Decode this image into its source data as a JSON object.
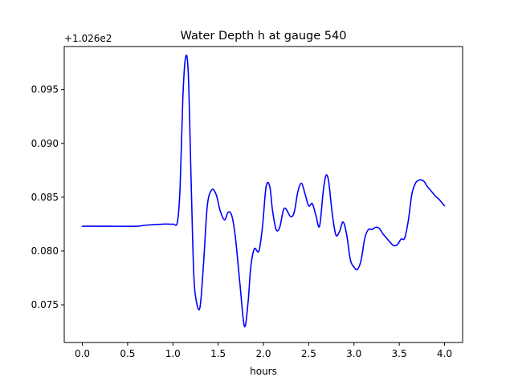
{
  "chart_data": {
    "type": "line",
    "title": "Water Depth h at gauge 540",
    "xlabel": "hours",
    "ylabel": "",
    "y_offset_label": "+1.026e2",
    "y_offset": 102.6,
    "xlim": [
      -0.2,
      4.2
    ],
    "ylim": [
      0.0715,
      0.099
    ],
    "x_ticks": [
      0.0,
      0.5,
      1.0,
      1.5,
      2.0,
      2.5,
      3.0,
      3.5,
      4.0
    ],
    "x_tick_labels": [
      "0.0",
      "0.5",
      "1.0",
      "1.5",
      "2.0",
      "2.5",
      "3.0",
      "3.5",
      "4.0"
    ],
    "y_ticks": [
      0.075,
      0.08,
      0.085,
      0.09,
      0.095
    ],
    "y_tick_labels": [
      "0.075",
      "0.080",
      "0.085",
      "0.090",
      "0.095"
    ],
    "grid": false,
    "series": [
      {
        "color": "#0000ff",
        "x": [
          0.0,
          0.3,
          0.6,
          0.7,
          0.9,
          1.0,
          1.05,
          1.08,
          1.11,
          1.14,
          1.17,
          1.2,
          1.23,
          1.26,
          1.3,
          1.34,
          1.38,
          1.43,
          1.48,
          1.52,
          1.57,
          1.61,
          1.65,
          1.69,
          1.74,
          1.79,
          1.83,
          1.86,
          1.9,
          1.95,
          1.99,
          2.03,
          2.07,
          2.1,
          2.14,
          2.18,
          2.22,
          2.25,
          2.3,
          2.34,
          2.38,
          2.42,
          2.46,
          2.5,
          2.54,
          2.58,
          2.62,
          2.66,
          2.69,
          2.72,
          2.76,
          2.8,
          2.84,
          2.88,
          2.92,
          2.96,
          3.0,
          3.04,
          3.08,
          3.12,
          3.16,
          3.2,
          3.24,
          3.28,
          3.32,
          3.36,
          3.4,
          3.44,
          3.48,
          3.52,
          3.56,
          3.6,
          3.64,
          3.68,
          3.72,
          3.77,
          3.81,
          3.86,
          3.9,
          3.94,
          3.98,
          4.0
        ],
        "y": [
          0.0823,
          0.0823,
          0.0823,
          0.0824,
          0.0825,
          0.0825,
          0.0827,
          0.086,
          0.0942,
          0.098,
          0.0965,
          0.087,
          0.078,
          0.0753,
          0.0748,
          0.079,
          0.0842,
          0.0857,
          0.0852,
          0.0838,
          0.0829,
          0.0836,
          0.0833,
          0.0813,
          0.077,
          0.073,
          0.0752,
          0.0785,
          0.0802,
          0.08,
          0.0823,
          0.086,
          0.086,
          0.0838,
          0.082,
          0.0822,
          0.0838,
          0.0839,
          0.0832,
          0.0836,
          0.0855,
          0.0863,
          0.0853,
          0.0842,
          0.0844,
          0.0833,
          0.0823,
          0.0855,
          0.087,
          0.0865,
          0.0835,
          0.0815,
          0.0818,
          0.0827,
          0.0815,
          0.0792,
          0.0785,
          0.0783,
          0.0792,
          0.0812,
          0.082,
          0.082,
          0.0822,
          0.0821,
          0.0816,
          0.0812,
          0.0808,
          0.0805,
          0.0806,
          0.0811,
          0.0812,
          0.0828,
          0.0853,
          0.0863,
          0.0866,
          0.0865,
          0.086,
          0.0855,
          0.0851,
          0.0848,
          0.0844,
          0.0842
        ]
      }
    ]
  }
}
